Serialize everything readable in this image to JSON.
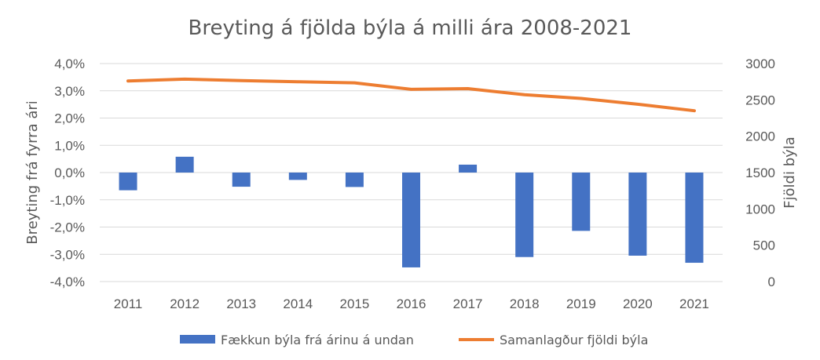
{
  "chart_data": {
    "type": "bar+line",
    "title": "Breyting á fjölda býla á milli ára 2008-2021",
    "categories": [
      "2011",
      "2012",
      "2013",
      "2014",
      "2015",
      "2016",
      "2017",
      "2018",
      "2019",
      "2020",
      "2021"
    ],
    "series": [
      {
        "name": "Fækkun býla frá árinu á undan",
        "type": "bar",
        "axis": "left",
        "color": "#4472C4",
        "values": [
          -0.65,
          0.58,
          -0.52,
          -0.27,
          -0.53,
          -3.48,
          0.29,
          -3.1,
          -2.14,
          -3.05,
          -3.31
        ]
      },
      {
        "name": "Samanlagður fjöldi býla",
        "type": "line",
        "axis": "right",
        "color": "#ED7D31",
        "values": [
          2760,
          2785,
          2765,
          2750,
          2735,
          2645,
          2655,
          2570,
          2520,
          2440,
          2350
        ]
      }
    ],
    "ylabel_left": "Breyting frá fyrra ári",
    "ylabel_right": "Fjöldi býla",
    "ylim_left": [
      -4,
      4
    ],
    "ylim_right": [
      0,
      3000
    ],
    "yticks_left": [
      "4,0%",
      "3,0%",
      "2,0%",
      "1,0%",
      "0,0%",
      "-1,0%",
      "-2,0%",
      "-3,0%",
      "-4,0%"
    ],
    "yticks_right": [
      "3000",
      "2500",
      "2000",
      "1500",
      "1000",
      "500",
      "0"
    ],
    "grid": true,
    "legend_position": "bottom"
  }
}
